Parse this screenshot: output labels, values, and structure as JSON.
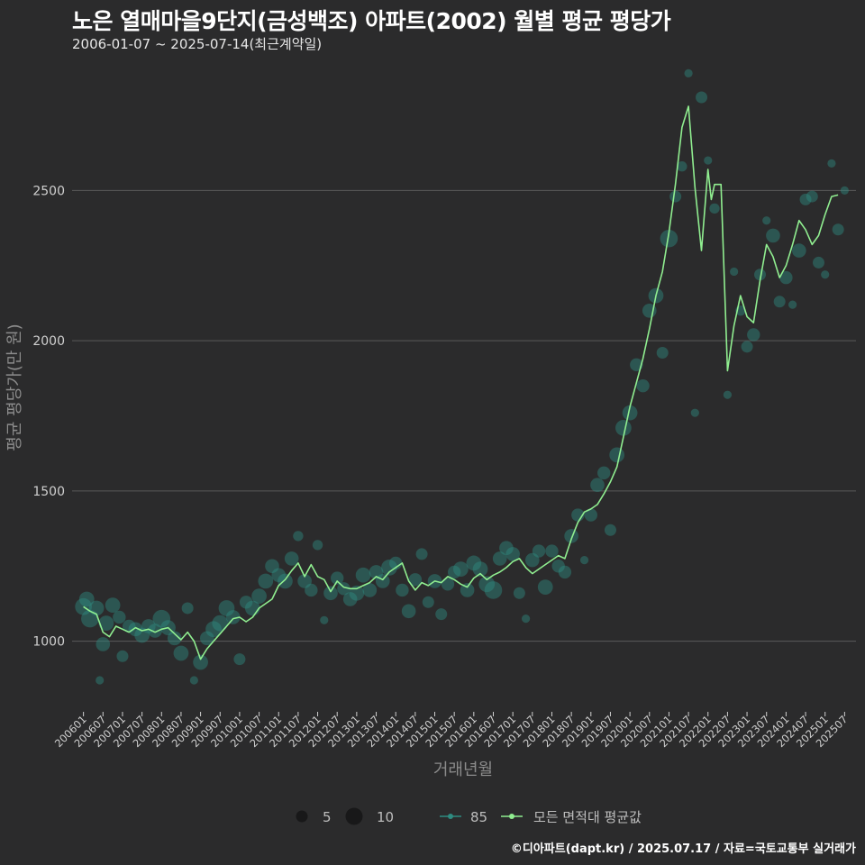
{
  "header": {
    "title": "노은 열매마을9단지(금성백조) 아파트(2002) 월별 평균 평당가",
    "subtitle": "2006-01-07 ~ 2025-07-14(최근계약일)"
  },
  "footer": {
    "credit": "©디아파트(dapt.kr) / 2025.07.17 / 자료=국토교통부 실거래가"
  },
  "colors": {
    "background": "#2b2b2c",
    "grid": "#5a5a5a",
    "avg_line": "#90ee90",
    "area_points": "#2e8b80"
  },
  "chart_data": {
    "type": "line",
    "xlabel": "거래년월",
    "ylabel": "평균 평당가(만 원)",
    "ylim": [
      780,
      2900
    ],
    "y_ticks": [
      1000,
      1500,
      2000,
      2500
    ],
    "x_ticks": [
      "200601",
      "200607",
      "200701",
      "200707",
      "200801",
      "200807",
      "200901",
      "200907",
      "201001",
      "201007",
      "201101",
      "201107",
      "201201",
      "201207",
      "201301",
      "201307",
      "201401",
      "201407",
      "201501",
      "201507",
      "201601",
      "201607",
      "201701",
      "201707",
      "201801",
      "201807",
      "201901",
      "201907",
      "202001",
      "202007",
      "202101",
      "202107",
      "202201",
      "202207",
      "202301",
      "202307",
      "202401",
      "202407",
      "202501",
      "202507"
    ],
    "legend": {
      "size_title": "",
      "size_values": [
        5,
        10
      ],
      "area_label": "85",
      "avg_label": "모든 면적대 평균값"
    },
    "avg_series": [
      {
        "x": "200601",
        "y": 1115
      },
      {
        "x": "200603",
        "y": 1100
      },
      {
        "x": "200605",
        "y": 1090
      },
      {
        "x": "200607",
        "y": 1030
      },
      {
        "x": "200609",
        "y": 1015
      },
      {
        "x": "200611",
        "y": 1050
      },
      {
        "x": "200701",
        "y": 1040
      },
      {
        "x": "200703",
        "y": 1030
      },
      {
        "x": "200705",
        "y": 1045
      },
      {
        "x": "200707",
        "y": 1035
      },
      {
        "x": "200709",
        "y": 1040
      },
      {
        "x": "200711",
        "y": 1030
      },
      {
        "x": "200801",
        "y": 1040
      },
      {
        "x": "200803",
        "y": 1045
      },
      {
        "x": "200805",
        "y": 1025
      },
      {
        "x": "200807",
        "y": 1005
      },
      {
        "x": "200809",
        "y": 1030
      },
      {
        "x": "200811",
        "y": 1000
      },
      {
        "x": "200901",
        "y": 940
      },
      {
        "x": "200903",
        "y": 975
      },
      {
        "x": "200905",
        "y": 1000
      },
      {
        "x": "200907",
        "y": 1025
      },
      {
        "x": "200909",
        "y": 1050
      },
      {
        "x": "200911",
        "y": 1075
      },
      {
        "x": "201001",
        "y": 1080
      },
      {
        "x": "201003",
        "y": 1065
      },
      {
        "x": "201005",
        "y": 1080
      },
      {
        "x": "201007",
        "y": 1110
      },
      {
        "x": "201009",
        "y": 1125
      },
      {
        "x": "201011",
        "y": 1140
      },
      {
        "x": "201101",
        "y": 1185
      },
      {
        "x": "201103",
        "y": 1205
      },
      {
        "x": "201105",
        "y": 1235
      },
      {
        "x": "201107",
        "y": 1260
      },
      {
        "x": "201109",
        "y": 1215
      },
      {
        "x": "201111",
        "y": 1255
      },
      {
        "x": "201201",
        "y": 1215
      },
      {
        "x": "201203",
        "y": 1205
      },
      {
        "x": "201205",
        "y": 1165
      },
      {
        "x": "201207",
        "y": 1200
      },
      {
        "x": "201209",
        "y": 1180
      },
      {
        "x": "201211",
        "y": 1175
      },
      {
        "x": "201301",
        "y": 1175
      },
      {
        "x": "201303",
        "y": 1185
      },
      {
        "x": "201305",
        "y": 1195
      },
      {
        "x": "201307",
        "y": 1215
      },
      {
        "x": "201309",
        "y": 1205
      },
      {
        "x": "201311",
        "y": 1230
      },
      {
        "x": "201401",
        "y": 1245
      },
      {
        "x": "201403",
        "y": 1260
      },
      {
        "x": "201405",
        "y": 1200
      },
      {
        "x": "201407",
        "y": 1170
      },
      {
        "x": "201409",
        "y": 1195
      },
      {
        "x": "201411",
        "y": 1185
      },
      {
        "x": "201501",
        "y": 1200
      },
      {
        "x": "201503",
        "y": 1195
      },
      {
        "x": "201505",
        "y": 1215
      },
      {
        "x": "201507",
        "y": 1205
      },
      {
        "x": "201509",
        "y": 1190
      },
      {
        "x": "201511",
        "y": 1180
      },
      {
        "x": "201601",
        "y": 1210
      },
      {
        "x": "201603",
        "y": 1225
      },
      {
        "x": "201605",
        "y": 1205
      },
      {
        "x": "201607",
        "y": 1220
      },
      {
        "x": "201609",
        "y": 1230
      },
      {
        "x": "201611",
        "y": 1245
      },
      {
        "x": "201701",
        "y": 1265
      },
      {
        "x": "201703",
        "y": 1275
      },
      {
        "x": "201705",
        "y": 1245
      },
      {
        "x": "201707",
        "y": 1225
      },
      {
        "x": "201709",
        "y": 1240
      },
      {
        "x": "201711",
        "y": 1255
      },
      {
        "x": "201801",
        "y": 1270
      },
      {
        "x": "201803",
        "y": 1285
      },
      {
        "x": "201805",
        "y": 1275
      },
      {
        "x": "201807",
        "y": 1340
      },
      {
        "x": "201809",
        "y": 1395
      },
      {
        "x": "201811",
        "y": 1430
      },
      {
        "x": "201901",
        "y": 1440
      },
      {
        "x": "201903",
        "y": 1455
      },
      {
        "x": "201905",
        "y": 1490
      },
      {
        "x": "201907",
        "y": 1530
      },
      {
        "x": "201909",
        "y": 1580
      },
      {
        "x": "201911",
        "y": 1680
      },
      {
        "x": "202001",
        "y": 1780
      },
      {
        "x": "202003",
        "y": 1860
      },
      {
        "x": "202005",
        "y": 1940
      },
      {
        "x": "202007",
        "y": 2040
      },
      {
        "x": "202009",
        "y": 2150
      },
      {
        "x": "202011",
        "y": 2230
      },
      {
        "x": "202101",
        "y": 2360
      },
      {
        "x": "202103",
        "y": 2520
      },
      {
        "x": "202105",
        "y": 2710
      },
      {
        "x": "202107",
        "y": 2780
      },
      {
        "x": "202109",
        "y": 2510
      },
      {
        "x": "202111",
        "y": 2300
      },
      {
        "x": "202201",
        "y": 2570
      },
      {
        "x": "202202",
        "y": 2470
      },
      {
        "x": "202203",
        "y": 2520
      },
      {
        "x": "202205",
        "y": 2520
      },
      {
        "x": "202207",
        "y": 1900
      },
      {
        "x": "202209",
        "y": 2050
      },
      {
        "x": "202211",
        "y": 2150
      },
      {
        "x": "202301",
        "y": 2080
      },
      {
        "x": "202303",
        "y": 2060
      },
      {
        "x": "202305",
        "y": 2200
      },
      {
        "x": "202307",
        "y": 2320
      },
      {
        "x": "202309",
        "y": 2280
      },
      {
        "x": "202311",
        "y": 2210
      },
      {
        "x": "202401",
        "y": 2250
      },
      {
        "x": "202403",
        "y": 2320
      },
      {
        "x": "202405",
        "y": 2400
      },
      {
        "x": "202407",
        "y": 2370
      },
      {
        "x": "202409",
        "y": 2320
      },
      {
        "x": "202411",
        "y": 2350
      },
      {
        "x": "202501",
        "y": 2420
      },
      {
        "x": "202503",
        "y": 2480
      },
      {
        "x": "202505",
        "y": 2485
      }
    ],
    "area_points": [
      {
        "x": "200601",
        "y": 1115,
        "count": 8
      },
      {
        "x": "200602",
        "y": 1140,
        "count": 6
      },
      {
        "x": "200603",
        "y": 1075,
        "count": 9
      },
      {
        "x": "200605",
        "y": 1110,
        "count": 6
      },
      {
        "x": "200606",
        "y": 870,
        "count": 1
      },
      {
        "x": "200607",
        "y": 990,
        "count": 5
      },
      {
        "x": "200608",
        "y": 1060,
        "count": 6
      },
      {
        "x": "200610",
        "y": 1120,
        "count": 6
      },
      {
        "x": "200612",
        "y": 1080,
        "count": 4
      },
      {
        "x": "200701",
        "y": 950,
        "count": 3
      },
      {
        "x": "200703",
        "y": 1050,
        "count": 4
      },
      {
        "x": "200705",
        "y": 1040,
        "count": 5
      },
      {
        "x": "200707",
        "y": 1020,
        "count": 6
      },
      {
        "x": "200709",
        "y": 1050,
        "count": 5
      },
      {
        "x": "200711",
        "y": 1035,
        "count": 5
      },
      {
        "x": "200801",
        "y": 1075,
        "count": 9
      },
      {
        "x": "200803",
        "y": 1045,
        "count": 6
      },
      {
        "x": "200805",
        "y": 1010,
        "count": 5
      },
      {
        "x": "200807",
        "y": 960,
        "count": 6
      },
      {
        "x": "200809",
        "y": 1110,
        "count": 3
      },
      {
        "x": "200811",
        "y": 870,
        "count": 1
      },
      {
        "x": "200901",
        "y": 930,
        "count": 6
      },
      {
        "x": "200903",
        "y": 1010,
        "count": 5
      },
      {
        "x": "200905",
        "y": 1040,
        "count": 7
      },
      {
        "x": "200907",
        "y": 1060,
        "count": 7
      },
      {
        "x": "200909",
        "y": 1110,
        "count": 7
      },
      {
        "x": "200911",
        "y": 1080,
        "count": 5
      },
      {
        "x": "201001",
        "y": 940,
        "count": 3
      },
      {
        "x": "201003",
        "y": 1130,
        "count": 4
      },
      {
        "x": "201005",
        "y": 1110,
        "count": 6
      },
      {
        "x": "201007",
        "y": 1150,
        "count": 6
      },
      {
        "x": "201009",
        "y": 1200,
        "count": 6
      },
      {
        "x": "201011",
        "y": 1250,
        "count": 5
      },
      {
        "x": "201101",
        "y": 1220,
        "count": 5
      },
      {
        "x": "201103",
        "y": 1200,
        "count": 6
      },
      {
        "x": "201105",
        "y": 1275,
        "count": 5
      },
      {
        "x": "201107",
        "y": 1350,
        "count": 2
      },
      {
        "x": "201109",
        "y": 1200,
        "count": 5
      },
      {
        "x": "201111",
        "y": 1170,
        "count": 4
      },
      {
        "x": "201201",
        "y": 1320,
        "count": 2
      },
      {
        "x": "201203",
        "y": 1070,
        "count": 1
      },
      {
        "x": "201205",
        "y": 1160,
        "count": 5
      },
      {
        "x": "201207",
        "y": 1210,
        "count": 4
      },
      {
        "x": "201209",
        "y": 1175,
        "count": 4
      },
      {
        "x": "201211",
        "y": 1140,
        "count": 5
      },
      {
        "x": "201301",
        "y": 1160,
        "count": 6
      },
      {
        "x": "201303",
        "y": 1220,
        "count": 6
      },
      {
        "x": "201305",
        "y": 1170,
        "count": 5
      },
      {
        "x": "201307",
        "y": 1230,
        "count": 5
      },
      {
        "x": "201309",
        "y": 1200,
        "count": 5
      },
      {
        "x": "201311",
        "y": 1245,
        "count": 7
      },
      {
        "x": "201401",
        "y": 1260,
        "count": 4
      },
      {
        "x": "201403",
        "y": 1170,
        "count": 4
      },
      {
        "x": "201405",
        "y": 1100,
        "count": 5
      },
      {
        "x": "201407",
        "y": 1205,
        "count": 4
      },
      {
        "x": "201409",
        "y": 1290,
        "count": 3
      },
      {
        "x": "201411",
        "y": 1130,
        "count": 3
      },
      {
        "x": "201501",
        "y": 1200,
        "count": 5
      },
      {
        "x": "201503",
        "y": 1090,
        "count": 3
      },
      {
        "x": "201505",
        "y": 1190,
        "count": 4
      },
      {
        "x": "201507",
        "y": 1230,
        "count": 4
      },
      {
        "x": "201509",
        "y": 1240,
        "count": 6
      },
      {
        "x": "201511",
        "y": 1170,
        "count": 5
      },
      {
        "x": "201601",
        "y": 1260,
        "count": 6
      },
      {
        "x": "201603",
        "y": 1240,
        "count": 6
      },
      {
        "x": "201605",
        "y": 1190,
        "count": 7
      },
      {
        "x": "201607",
        "y": 1170,
        "count": 9
      },
      {
        "x": "201609",
        "y": 1275,
        "count": 5
      },
      {
        "x": "201611",
        "y": 1310,
        "count": 5
      },
      {
        "x": "201701",
        "y": 1290,
        "count": 5
      },
      {
        "x": "201703",
        "y": 1160,
        "count": 3
      },
      {
        "x": "201705",
        "y": 1075,
        "count": 1
      },
      {
        "x": "201707",
        "y": 1270,
        "count": 5
      },
      {
        "x": "201709",
        "y": 1300,
        "count": 4
      },
      {
        "x": "201711",
        "y": 1180,
        "count": 6
      },
      {
        "x": "201801",
        "y": 1300,
        "count": 4
      },
      {
        "x": "201803",
        "y": 1250,
        "count": 4
      },
      {
        "x": "201805",
        "y": 1230,
        "count": 4
      },
      {
        "x": "201807",
        "y": 1350,
        "count": 5
      },
      {
        "x": "201809",
        "y": 1420,
        "count": 4
      },
      {
        "x": "201811",
        "y": 1270,
        "count": 1
      },
      {
        "x": "201901",
        "y": 1420,
        "count": 4
      },
      {
        "x": "201903",
        "y": 1520,
        "count": 5
      },
      {
        "x": "201905",
        "y": 1560,
        "count": 4
      },
      {
        "x": "201907",
        "y": 1370,
        "count": 3
      },
      {
        "x": "201909",
        "y": 1620,
        "count": 6
      },
      {
        "x": "201911",
        "y": 1710,
        "count": 7
      },
      {
        "x": "202001",
        "y": 1760,
        "count": 6
      },
      {
        "x": "202003",
        "y": 1920,
        "count": 4
      },
      {
        "x": "202005",
        "y": 1850,
        "count": 4
      },
      {
        "x": "202007",
        "y": 2100,
        "count": 5
      },
      {
        "x": "202009",
        "y": 2150,
        "count": 6
      },
      {
        "x": "202011",
        "y": 1960,
        "count": 3
      },
      {
        "x": "202101",
        "y": 2340,
        "count": 9
      },
      {
        "x": "202103",
        "y": 2480,
        "count": 3
      },
      {
        "x": "202105",
        "y": 2580,
        "count": 2
      },
      {
        "x": "202107",
        "y": 2890,
        "count": 1
      },
      {
        "x": "202109",
        "y": 1760,
        "count": 1
      },
      {
        "x": "202111",
        "y": 2810,
        "count": 3
      },
      {
        "x": "202201",
        "y": 2600,
        "count": 1
      },
      {
        "x": "202203",
        "y": 2440,
        "count": 2
      },
      {
        "x": "202207",
        "y": 1820,
        "count": 1
      },
      {
        "x": "202209",
        "y": 2230,
        "count": 1
      },
      {
        "x": "202211",
        "y": 2100,
        "count": 2
      },
      {
        "x": "202301",
        "y": 1980,
        "count": 3
      },
      {
        "x": "202303",
        "y": 2020,
        "count": 4
      },
      {
        "x": "202305",
        "y": 2220,
        "count": 3
      },
      {
        "x": "202307",
        "y": 2400,
        "count": 1
      },
      {
        "x": "202309",
        "y": 2350,
        "count": 5
      },
      {
        "x": "202311",
        "y": 2130,
        "count": 3
      },
      {
        "x": "202401",
        "y": 2210,
        "count": 4
      },
      {
        "x": "202403",
        "y": 2120,
        "count": 1
      },
      {
        "x": "202405",
        "y": 2300,
        "count": 5
      },
      {
        "x": "202407",
        "y": 2470,
        "count": 3
      },
      {
        "x": "202409",
        "y": 2480,
        "count": 3
      },
      {
        "x": "202411",
        "y": 2260,
        "count": 3
      },
      {
        "x": "202501",
        "y": 2220,
        "count": 1
      },
      {
        "x": "202503",
        "y": 2590,
        "count": 1
      },
      {
        "x": "202505",
        "y": 2370,
        "count": 3
      },
      {
        "x": "202507",
        "y": 2500,
        "count": 1
      }
    ]
  }
}
